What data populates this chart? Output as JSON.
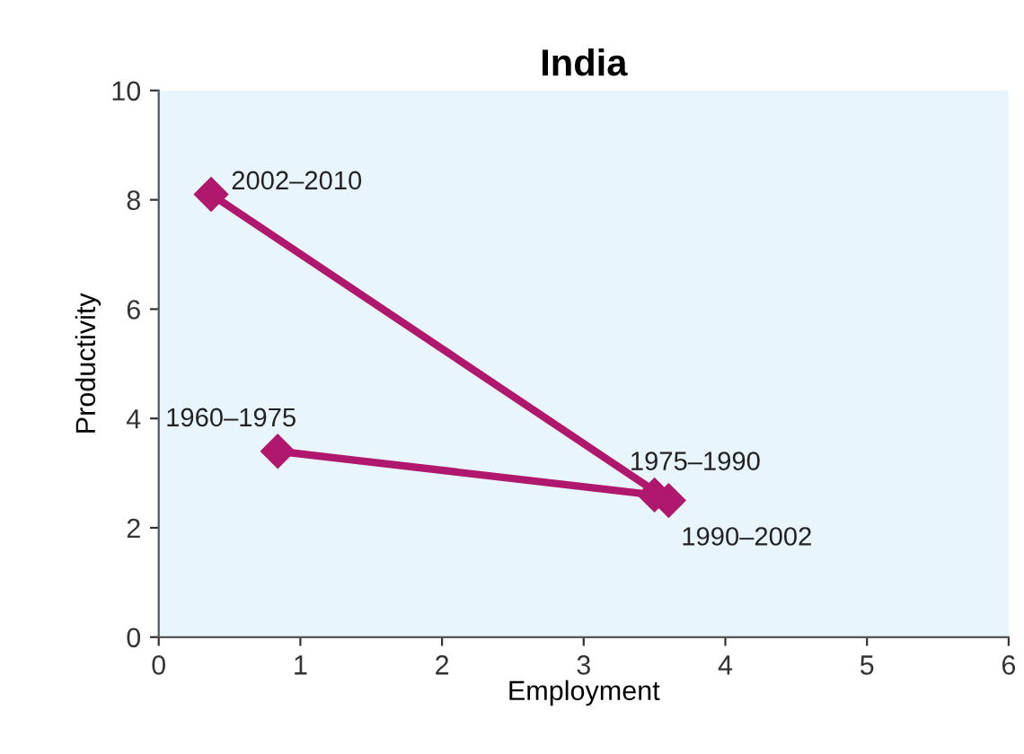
{
  "chart_data": {
    "type": "line",
    "title": "India",
    "xlabel": "Employment",
    "ylabel": "Productivity",
    "x": [
      0.84,
      3.5,
      3.6,
      0.37
    ],
    "series": [
      {
        "color": "#b0186e",
        "values": [
          3.4,
          2.6,
          2.5,
          8.1
        ]
      }
    ],
    "xlim": [
      0,
      6
    ],
    "ylim": [
      0,
      10
    ],
    "xticks": [
      0,
      1,
      2,
      3,
      4,
      5,
      6
    ],
    "yticks": [
      0,
      2,
      4,
      6,
      8,
      10
    ],
    "grid": false,
    "legend": false,
    "marker": "diamond",
    "line_style": "solid",
    "annotations": [
      {
        "text": "1960–1975",
        "x": 0.84,
        "y": 3.4
      },
      {
        "text": "1975–1990",
        "x": 3.5,
        "y": 2.6
      },
      {
        "text": "1990–2002",
        "x": 3.6,
        "y": 2.5
      },
      {
        "text": "2002–2010",
        "x": 0.37,
        "y": 8.1
      }
    ]
  }
}
